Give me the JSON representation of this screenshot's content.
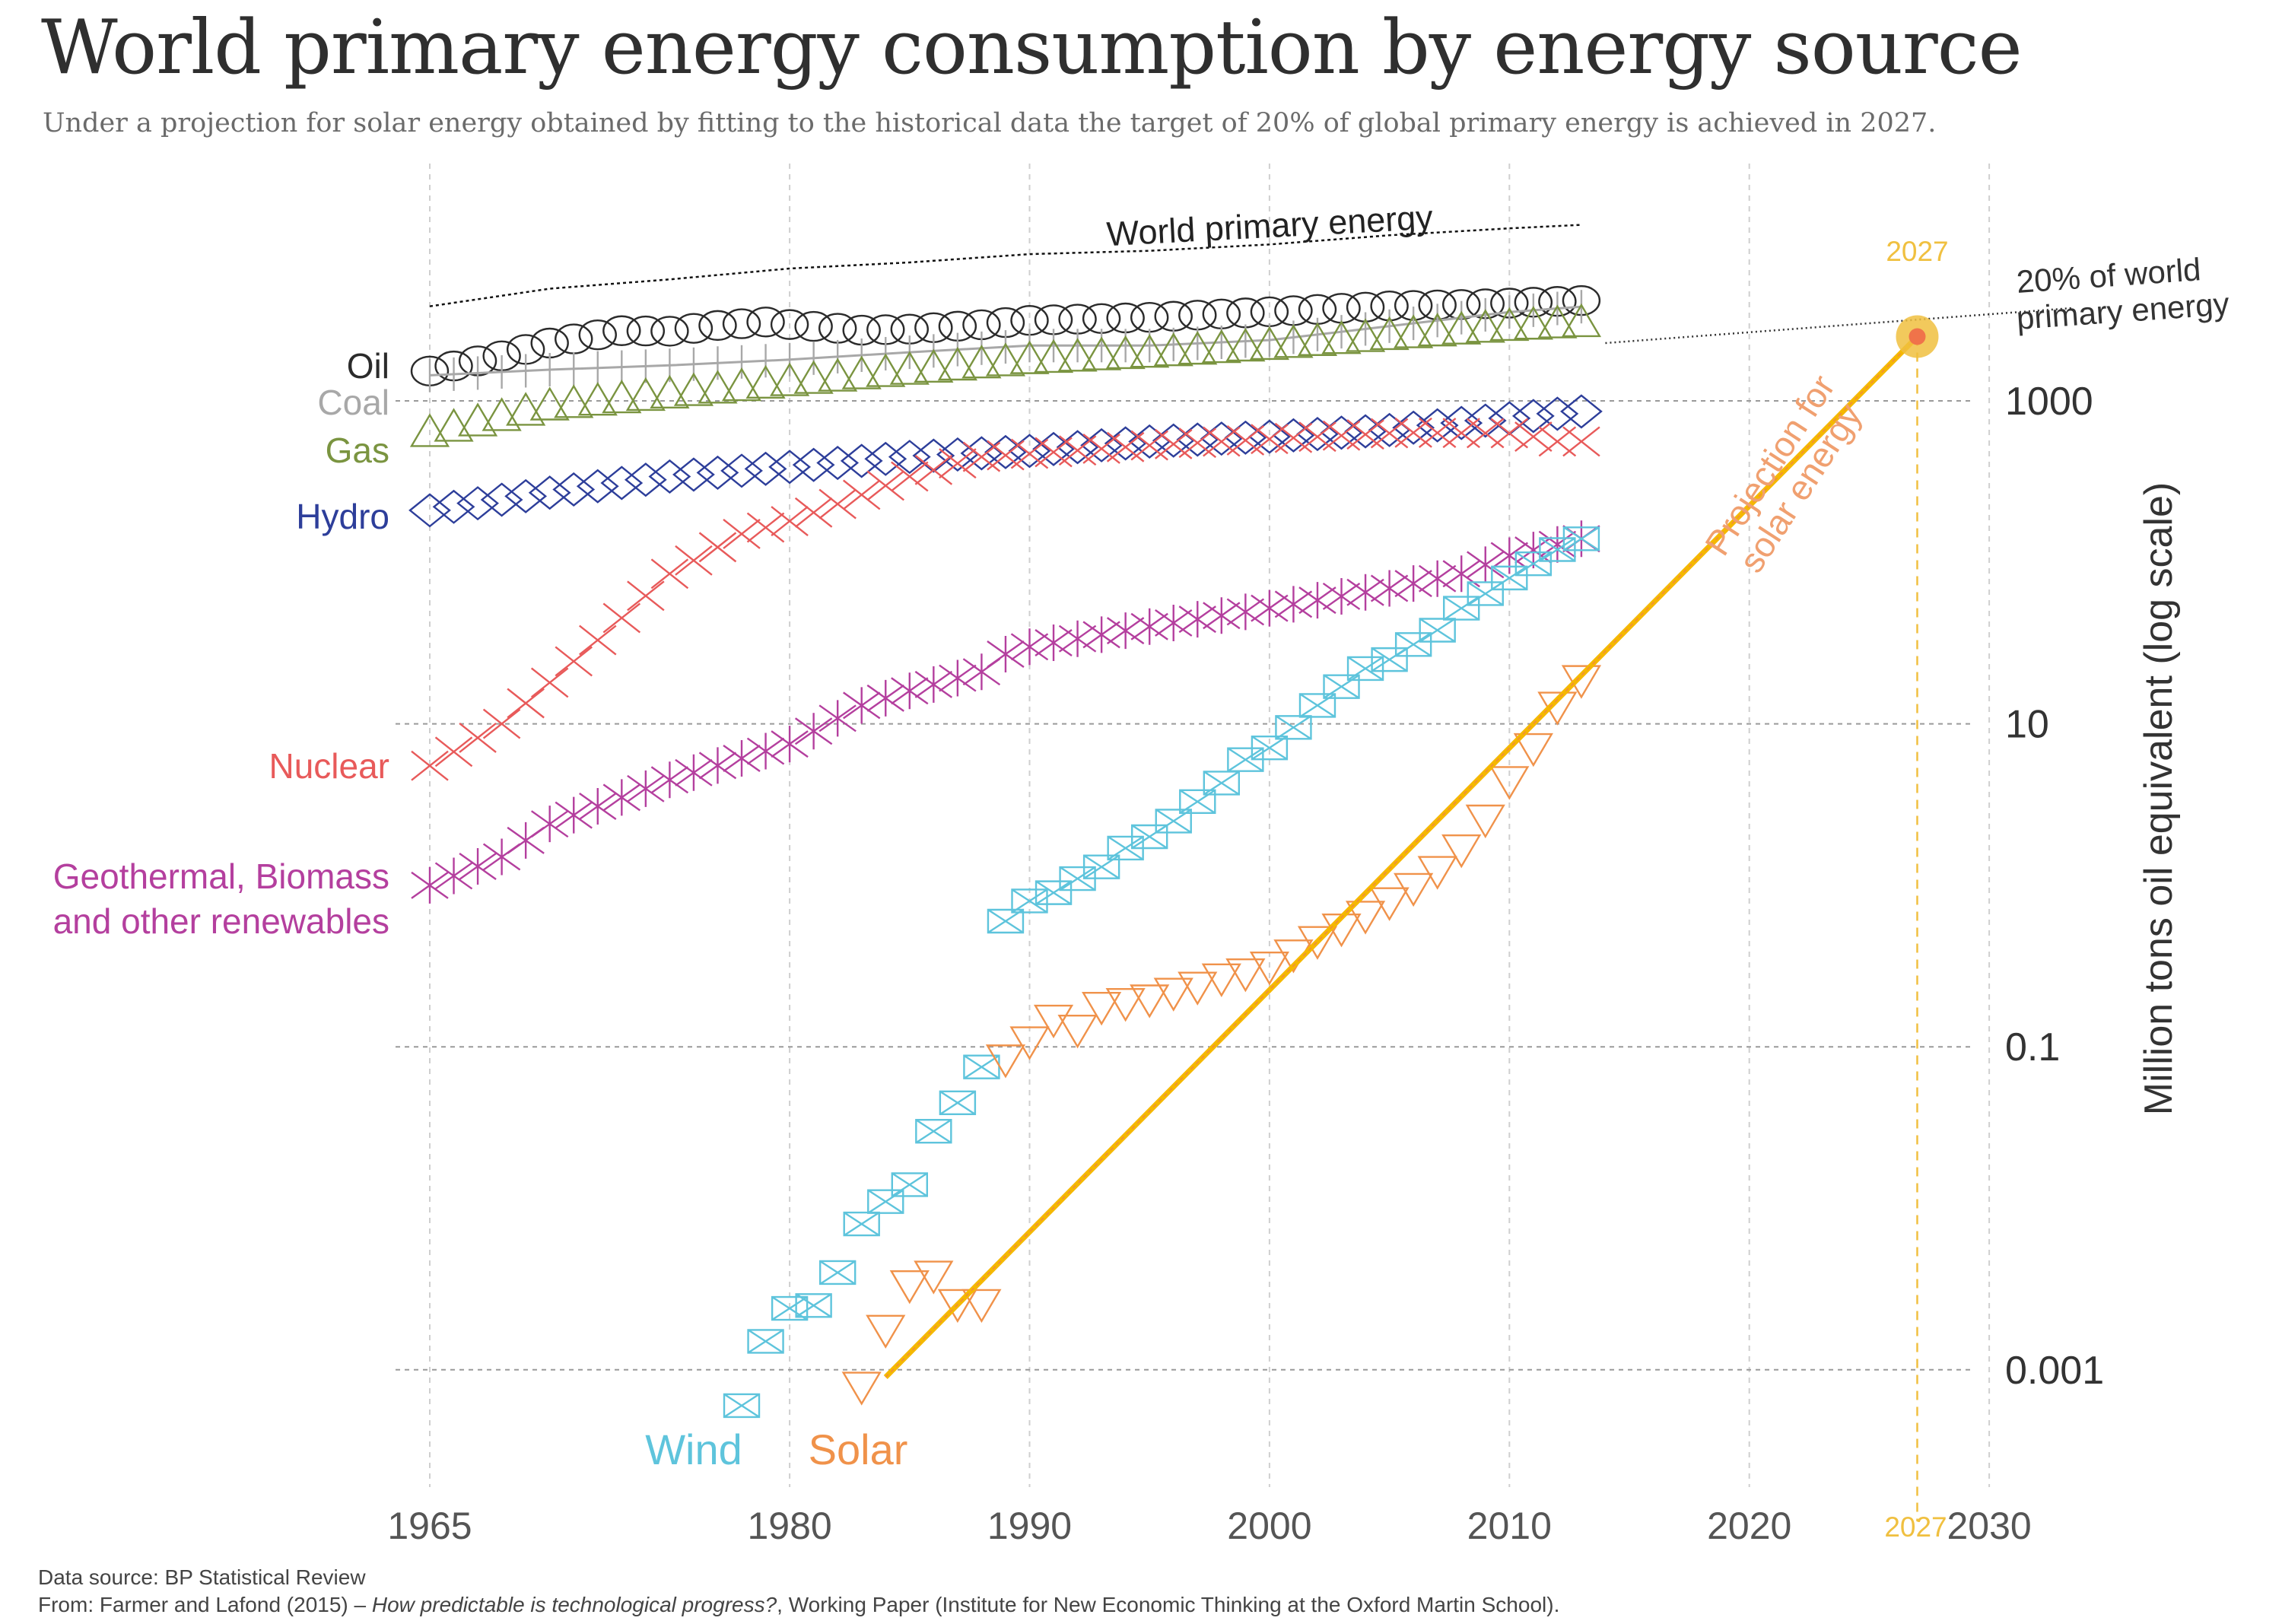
{
  "title": "World primary energy consumption by energy source",
  "subtitle": "Under a projection for solar energy obtained by fitting to the historical data the target of 20% of global primary energy is achieved in 2027.",
  "footer": {
    "source": "Data source: BP Statistical Review",
    "citation_prefix": "From: Farmer and Lafond (2015) – ",
    "citation_title": "How predictable is technological progress?",
    "citation_suffix": ", Working Paper (Institute for New Economic Thinking at the Oxford Martin School)."
  },
  "colors": {
    "oil": "#2b2b2b",
    "coal": "#a8a8a8",
    "gas": "#7a9440",
    "hydro": "#2d3e9a",
    "nuclear": "#e85a5a",
    "geo": "#b43f9e",
    "wind": "#5ec4dc",
    "solar": "#f0924a",
    "projection": "#f5b800",
    "target": "#f0c040",
    "projection_label": "#f0a070"
  },
  "chart_data": {
    "type": "line",
    "xlim": [
      1965,
      2030
    ],
    "ylim_log10": [
      -4.5,
      3.5
    ],
    "y_scale": "log",
    "ylabel": "Million tons oil equivalent (log scale)",
    "x_ticks": [
      1965,
      1980,
      1990,
      2000,
      2010,
      2020,
      2030
    ],
    "y_ticks": [
      {
        "value": 1000,
        "label": "1000"
      },
      {
        "value": 10,
        "label": "10"
      },
      {
        "value": 0.1,
        "label": "0.1"
      },
      {
        "value": 0.001,
        "label": "0.001"
      }
    ],
    "grid": true,
    "series": [
      {
        "name": "World primary energy",
        "key": "world",
        "marker": "none",
        "label": "World primary energy",
        "points": [
          [
            1965,
            3850
          ],
          [
            1970,
            4950
          ],
          [
            1975,
            5650
          ],
          [
            1980,
            6600
          ],
          [
            1985,
            7200
          ],
          [
            1990,
            8100
          ],
          [
            1995,
            8500
          ],
          [
            2000,
            9300
          ],
          [
            2005,
            10600
          ],
          [
            2010,
            11700
          ],
          [
            2013,
            12300
          ]
        ]
      },
      {
        "name": "Oil",
        "key": "oil",
        "marker": "circle",
        "label": "Oil",
        "points": [
          [
            1965,
            1530
          ],
          [
            1968,
            1900
          ],
          [
            1970,
            2280
          ],
          [
            1973,
            2720
          ],
          [
            1975,
            2700
          ],
          [
            1977,
            2930
          ],
          [
            1979,
            3080
          ],
          [
            1980,
            2970
          ],
          [
            1983,
            2740
          ],
          [
            1985,
            2780
          ],
          [
            1988,
            2960
          ],
          [
            1990,
            3150
          ],
          [
            1995,
            3290
          ],
          [
            2000,
            3560
          ],
          [
            2005,
            3870
          ],
          [
            2008,
            3950
          ],
          [
            2010,
            4030
          ],
          [
            2013,
            4180
          ]
        ]
      },
      {
        "name": "Coal",
        "key": "coal",
        "marker": "vbar",
        "label": "Coal",
        "points": [
          [
            1965,
            1440
          ],
          [
            1970,
            1560
          ],
          [
            1975,
            1660
          ],
          [
            1980,
            1800
          ],
          [
            1985,
            2000
          ],
          [
            1990,
            2200
          ],
          [
            1995,
            2200
          ],
          [
            2000,
            2380
          ],
          [
            2005,
            2900
          ],
          [
            2010,
            3550
          ],
          [
            2013,
            3830
          ]
        ]
      },
      {
        "name": "Gas",
        "key": "gas",
        "marker": "triangle-up",
        "label": "Gas",
        "points": [
          [
            1965,
            630
          ],
          [
            1970,
            920
          ],
          [
            1975,
            1090
          ],
          [
            1980,
            1300
          ],
          [
            1985,
            1530
          ],
          [
            1990,
            1780
          ],
          [
            1995,
            1950
          ],
          [
            2000,
            2180
          ],
          [
            2005,
            2510
          ],
          [
            2010,
            2860
          ],
          [
            2013,
            3020
          ]
        ]
      },
      {
        "name": "Hydro",
        "key": "hydro",
        "marker": "diamond",
        "label": "Hydro",
        "points": [
          [
            1965,
            210
          ],
          [
            1970,
            270
          ],
          [
            1975,
            340
          ],
          [
            1980,
            390
          ],
          [
            1985,
            450
          ],
          [
            1990,
            490
          ],
          [
            1995,
            560
          ],
          [
            2000,
            600
          ],
          [
            2005,
            660
          ],
          [
            2010,
            780
          ],
          [
            2013,
            860
          ]
        ]
      },
      {
        "name": "Nuclear",
        "key": "nuclear",
        "marker": "x",
        "label": "Nuclear",
        "points": [
          [
            1965,
            5.5
          ],
          [
            1968,
            10
          ],
          [
            1970,
            18
          ],
          [
            1972,
            33
          ],
          [
            1975,
            85
          ],
          [
            1978,
            150
          ],
          [
            1980,
            180
          ],
          [
            1982,
            230
          ],
          [
            1985,
            340
          ],
          [
            1988,
            450
          ],
          [
            1990,
            470
          ],
          [
            1995,
            530
          ],
          [
            2000,
            580
          ],
          [
            2005,
            630
          ],
          [
            2006,
            635
          ],
          [
            2010,
            630
          ],
          [
            2011,
            600
          ],
          [
            2012,
            560
          ],
          [
            2013,
            560
          ]
        ]
      },
      {
        "name": "Geothermal, Biomass and other renewables",
        "key": "geo",
        "marker": "star",
        "label1": "Geothermal, Biomass",
        "label2": "and other renewables",
        "points": [
          [
            1965,
            1.0
          ],
          [
            1968,
            1.5
          ],
          [
            1970,
            2.4
          ],
          [
            1975,
            4.5
          ],
          [
            1980,
            7.5
          ],
          [
            1983,
            13
          ],
          [
            1985,
            16
          ],
          [
            1988,
            21
          ],
          [
            1989,
            27
          ],
          [
            1990,
            30
          ],
          [
            1995,
            40
          ],
          [
            2000,
            52
          ],
          [
            2005,
            69
          ],
          [
            2008,
            85
          ],
          [
            2010,
            110
          ],
          [
            2013,
            140
          ]
        ]
      },
      {
        "name": "Wind",
        "key": "wind",
        "marker": "envelope",
        "label": "Wind",
        "points": [
          [
            1978,
            0.0006
          ],
          [
            1979,
            0.0015
          ],
          [
            1980,
            0.0024
          ],
          [
            1981,
            0.0025
          ],
          [
            1982,
            0.004
          ],
          [
            1983,
            0.008
          ],
          [
            1984,
            0.011
          ],
          [
            1985,
            0.014
          ],
          [
            1986,
            0.03
          ],
          [
            1987,
            0.045
          ],
          [
            1988,
            0.075
          ],
          [
            1989,
            0.6
          ],
          [
            1990,
            0.8
          ],
          [
            1991,
            0.9
          ],
          [
            1992,
            1.1
          ],
          [
            1993,
            1.3
          ],
          [
            1994,
            1.7
          ],
          [
            1995,
            2.0
          ],
          [
            1996,
            2.5
          ],
          [
            1997,
            3.3
          ],
          [
            1998,
            4.3
          ],
          [
            1999,
            6.0
          ],
          [
            2000,
            7.1
          ],
          [
            2001,
            9.5
          ],
          [
            2002,
            13
          ],
          [
            2003,
            17
          ],
          [
            2004,
            22
          ],
          [
            2005,
            25
          ],
          [
            2006,
            31
          ],
          [
            2007,
            38
          ],
          [
            2008,
            52
          ],
          [
            2009,
            64
          ],
          [
            2010,
            80
          ],
          [
            2011,
            98
          ],
          [
            2012,
            120
          ],
          [
            2013,
            140
          ]
        ]
      },
      {
        "name": "Solar",
        "key": "solar",
        "marker": "triangle-down",
        "label": "Solar",
        "points": [
          [
            1983,
            0.0008
          ],
          [
            1984,
            0.0018
          ],
          [
            1985,
            0.0034
          ],
          [
            1986,
            0.0039
          ],
          [
            1987,
            0.0026
          ],
          [
            1988,
            0.0026
          ],
          [
            1989,
            0.085
          ],
          [
            1990,
            0.11
          ],
          [
            1991,
            0.15
          ],
          [
            1992,
            0.13
          ],
          [
            1993,
            0.18
          ],
          [
            1994,
            0.19
          ],
          [
            1995,
            0.2
          ],
          [
            1996,
            0.22
          ],
          [
            1997,
            0.24
          ],
          [
            1998,
            0.27
          ],
          [
            1999,
            0.29
          ],
          [
            2000,
            0.32
          ],
          [
            2001,
            0.38
          ],
          [
            2002,
            0.46
          ],
          [
            2003,
            0.55
          ],
          [
            2004,
            0.66
          ],
          [
            2005,
            0.8
          ],
          [
            2006,
            0.98
          ],
          [
            2007,
            1.25
          ],
          [
            2008,
            1.7
          ],
          [
            2009,
            2.6
          ],
          [
            2010,
            4.5
          ],
          [
            2011,
            7.2
          ],
          [
            2012,
            13
          ],
          [
            2013,
            19
          ]
        ]
      }
    ],
    "projection": {
      "label1": "Projection for",
      "label2": "solar energy",
      "start": [
        1984,
        0.0009
      ],
      "end": [
        2027,
        2500
      ]
    },
    "target_line": {
      "label1": "20% of world",
      "label2": "primary energy",
      "start": [
        2014,
        2280
      ],
      "end": [
        2030,
        3300
      ]
    },
    "target_point": {
      "year": 2027,
      "value": 2500,
      "label_top": "2027",
      "label_bottom": "2027"
    }
  }
}
